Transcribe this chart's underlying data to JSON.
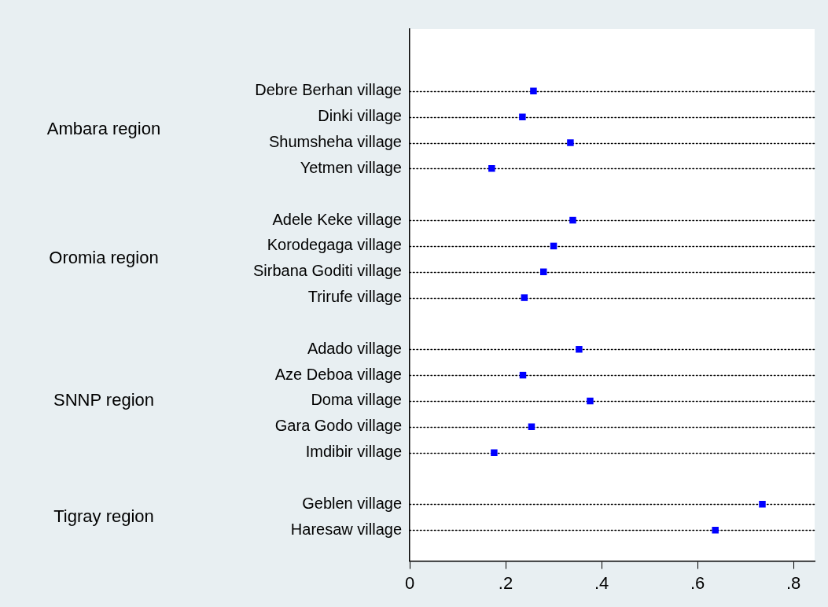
{
  "chart_data": {
    "type": "scatter",
    "orientation": "horizontal",
    "marker": "square",
    "grid": "y",
    "color": "#0000ff",
    "categories": [
      "Debre Berhan village",
      "Dinki village",
      "Shumsheha village",
      "Yetmen village",
      null,
      "Adele Keke village",
      "Korodegaga village",
      "Sirbana Goditi village",
      "Trirufe village",
      null,
      "Adado village",
      "Aze Deboa village",
      "Doma village",
      "Gara Godo village",
      "Imdibir village",
      null,
      "Geblen village",
      "Haresaw village"
    ],
    "values": [
      0.258,
      0.235,
      0.335,
      0.171,
      null,
      0.34,
      0.3,
      0.279,
      0.239,
      null,
      0.353,
      0.236,
      0.376,
      0.254,
      0.176,
      null,
      0.735,
      0.637
    ],
    "xlim": [
      0,
      0.844
    ],
    "xticks": [
      {
        "value": 0,
        "label": "0"
      },
      {
        "value": 0.2,
        "label": ".2"
      },
      {
        "value": 0.4,
        "label": ".4"
      },
      {
        "value": 0.6,
        "label": ".6"
      },
      {
        "value": 0.8,
        "label": ".8"
      }
    ],
    "annotations": [
      "Ambara region",
      "Oromia region",
      "SNNP region",
      "Tigray region"
    ]
  }
}
